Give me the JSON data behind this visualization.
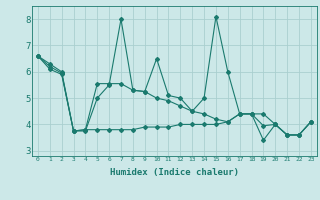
{
  "xlabel": "Humidex (Indice chaleur)",
  "x_values": [
    0,
    1,
    2,
    3,
    4,
    5,
    6,
    7,
    8,
    9,
    10,
    11,
    12,
    13,
    14,
    15,
    16,
    17,
    18,
    19,
    20,
    21,
    22,
    23
  ],
  "line1_y": [
    6.6,
    6.3,
    6.0,
    3.75,
    3.75,
    5.0,
    5.5,
    8.0,
    5.3,
    5.25,
    6.5,
    5.1,
    5.0,
    4.5,
    5.0,
    8.1,
    6.0,
    4.4,
    4.4,
    3.4,
    4.0,
    3.6,
    3.6,
    4.1
  ],
  "line2_y": [
    6.6,
    6.2,
    5.95,
    3.75,
    3.8,
    5.55,
    5.55,
    5.55,
    5.3,
    5.25,
    5.0,
    4.9,
    4.7,
    4.5,
    4.4,
    4.2,
    4.1,
    4.4,
    4.4,
    3.95,
    4.0,
    3.6,
    3.6,
    4.1
  ],
  "line3_y": [
    6.6,
    6.1,
    5.9,
    3.75,
    3.8,
    3.8,
    3.8,
    3.8,
    3.8,
    3.9,
    3.9,
    3.9,
    4.0,
    4.0,
    4.0,
    4.0,
    4.1,
    4.4,
    4.4,
    4.4,
    4.0,
    3.6,
    3.6,
    4.1
  ],
  "line_color": "#1a7a6e",
  "bg_color": "#cce8e8",
  "grid_color": "#aacfcf",
  "ylim": [
    2.8,
    8.5
  ],
  "xlim": [
    -0.5,
    23.5
  ]
}
